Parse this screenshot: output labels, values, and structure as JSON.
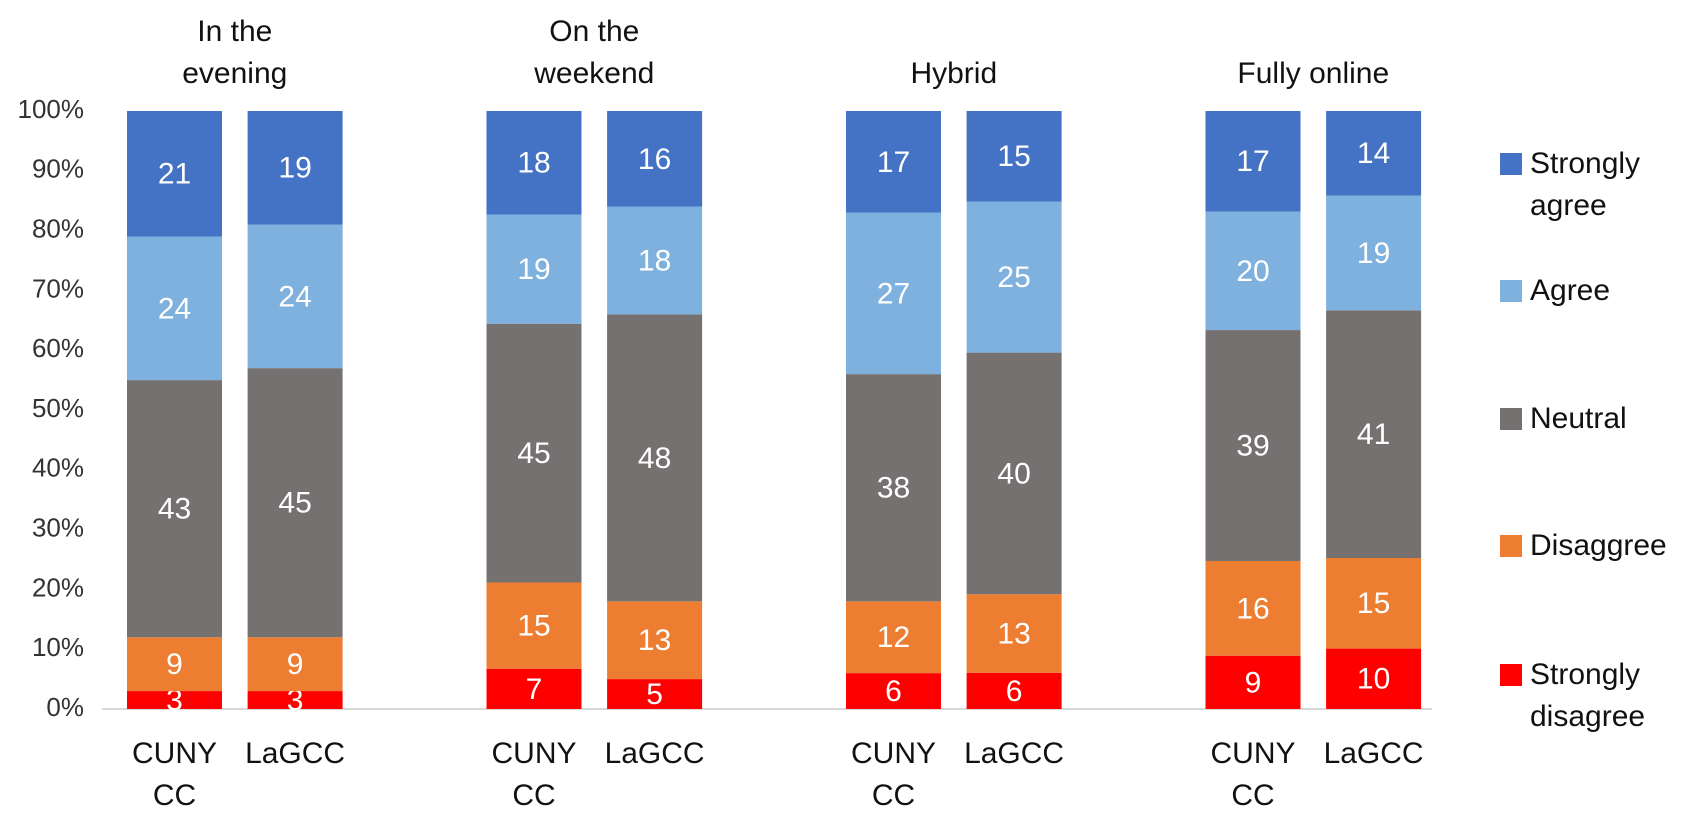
{
  "chart_data": {
    "type": "bar",
    "stacking": "percent",
    "groups": [
      "In the evening",
      "On the weekend",
      "Hybrid",
      "Fully online"
    ],
    "categories": [
      "CUNY CC",
      "LaGCC",
      "CUNY CC",
      "LaGCC",
      "CUNY CC",
      "LaGCC",
      "CUNY CC",
      "LaGCC"
    ],
    "series": [
      {
        "name": "Strongly agree",
        "color": "#4472c4",
        "values": [
          21,
          19,
          18,
          16,
          17,
          15,
          17,
          14
        ]
      },
      {
        "name": "Agree",
        "color": "#7fb1de",
        "values": [
          24,
          24,
          19,
          18,
          27,
          25,
          20,
          19
        ]
      },
      {
        "name": "Neutral",
        "color": "#767171",
        "values": [
          43,
          45,
          45,
          48,
          38,
          40,
          39,
          41
        ]
      },
      {
        "name": "Disaggree",
        "color": "#ed7d31",
        "values": [
          9,
          9,
          15,
          13,
          12,
          13,
          16,
          15
        ]
      },
      {
        "name": "Strongly disagree",
        "color": "#ff0000",
        "values": [
          3,
          3,
          7,
          5,
          6,
          6,
          9,
          10
        ]
      }
    ],
    "ylim": [
      0,
      100
    ],
    "yticks": [
      {
        "value": 0,
        "label": "0%"
      },
      {
        "value": 10,
        "label": "10%"
      },
      {
        "value": 20,
        "label": "20%"
      },
      {
        "value": 30,
        "label": "30%"
      },
      {
        "value": 40,
        "label": "40%"
      },
      {
        "value": 50,
        "label": "50%"
      },
      {
        "value": 60,
        "label": "60%"
      },
      {
        "value": 70,
        "label": "70%"
      },
      {
        "value": 80,
        "label": "80%"
      },
      {
        "value": 90,
        "label": "90%"
      },
      {
        "value": 100,
        "label": "100%"
      }
    ],
    "legend": "right"
  }
}
